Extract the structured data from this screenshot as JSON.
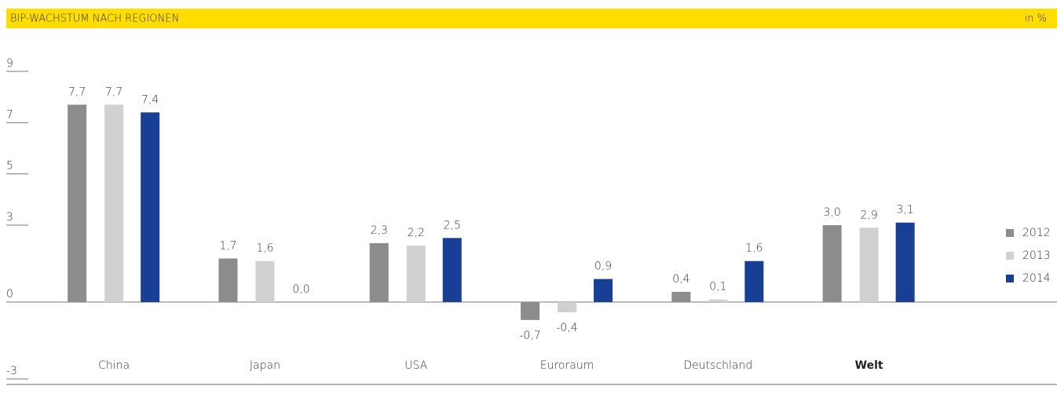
{
  "chart_data": {
    "type": "bar",
    "title": "BIP-WACHSTUM NACH REGIONEN",
    "unit_label": "in %",
    "categories": [
      "China",
      "Japan",
      "USA",
      "Euroraum",
      "Deutschland",
      "Welt"
    ],
    "series": [
      {
        "name": "2012",
        "color": "#8c8c8c",
        "values": [
          7.7,
          1.7,
          2.3,
          -0.7,
          0.4,
          3.0
        ],
        "value_labels": [
          "7,7",
          "1,7",
          "2,3",
          "-0,7",
          "0,4",
          "3,0"
        ]
      },
      {
        "name": "2013",
        "color": "#d0d0d0",
        "values": [
          7.7,
          1.6,
          2.2,
          -0.4,
          0.1,
          2.9
        ],
        "value_labels": [
          "7,7",
          "1,6",
          "2,2",
          "-0,4",
          "0,1",
          "2,9"
        ]
      },
      {
        "name": "2014",
        "color": "#163f95",
        "values": [
          7.4,
          0.0,
          2.5,
          0.9,
          1.6,
          3.1
        ],
        "value_labels": [
          "7,4",
          "0,0",
          "2,5",
          "0,9",
          "1,6",
          "3,1"
        ]
      }
    ],
    "ylim": [
      -3,
      9
    ],
    "yticks": [
      -3,
      0,
      3,
      5,
      7,
      9
    ],
    "legend": "right"
  }
}
